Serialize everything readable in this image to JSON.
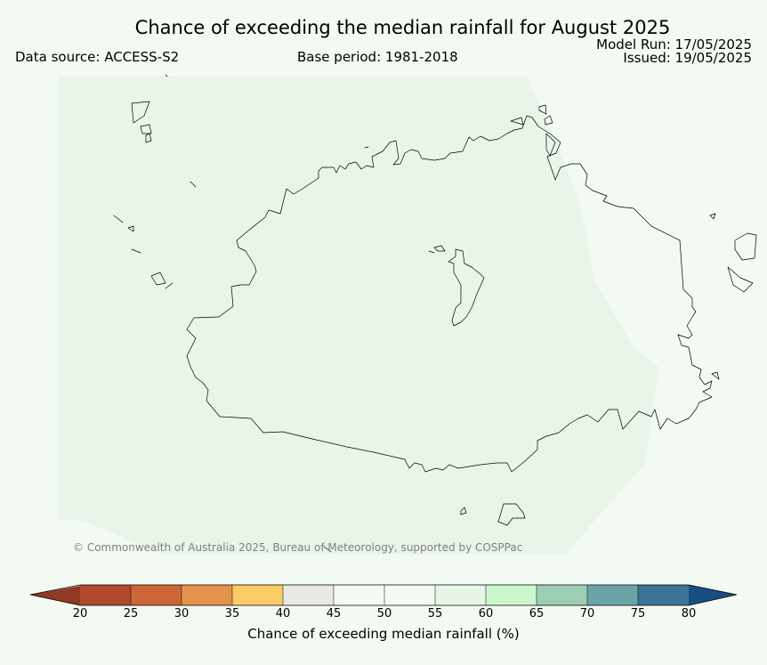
{
  "title": "Chance of exceeding the median rainfall for August 2025",
  "data_source": "Data source: ACCESS-S2",
  "base_period": "Base period: 1981-2018",
  "model_run": "Model Run: 17/05/2025",
  "issued": "Issued: 19/05/2025",
  "copyright": "© Commonwealth of Australia 2025, Bureau of Meteorology, supported by COSPPac",
  "map": {
    "forecast_category": "50-55",
    "colors": {
      "forecast_fill": "#e8f5e8",
      "coastline": "#000000"
    }
  },
  "colorbar": {
    "label": "Chance of exceeding median rainfall (%)",
    "ticks": [
      "20",
      "25",
      "30",
      "35",
      "40",
      "45",
      "50",
      "55",
      "60",
      "65",
      "70",
      "75",
      "80"
    ],
    "colors": [
      "#8e3a23",
      "#b14a2c",
      "#cd6637",
      "#e4934c",
      "#fccb66",
      "#e9e8e2",
      "#f5faf4",
      "#f5faf4",
      "#e7f5e7",
      "#ccf7cc",
      "#9ccdb5",
      "#6aa3a6",
      "#3d7496",
      "#174f82"
    ]
  }
}
